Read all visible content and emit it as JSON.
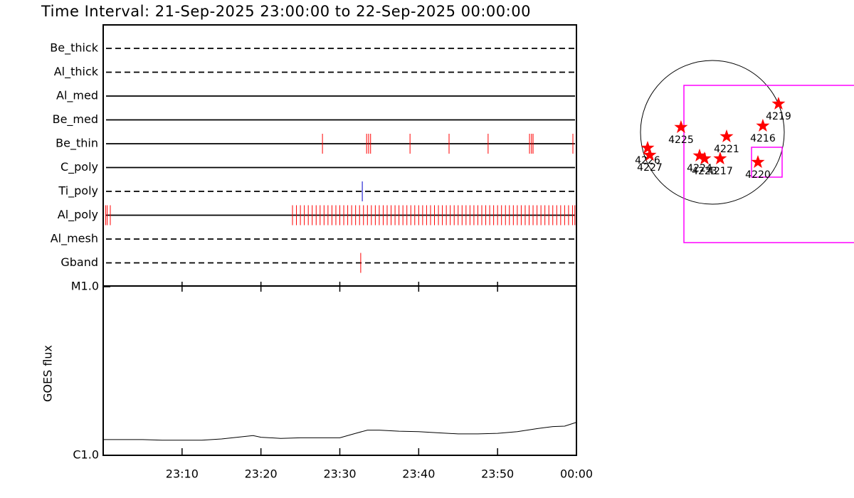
{
  "title": "Time Interval: 21-Sep-2025 23:00:00 to 22-Sep-2025 00:00:00",
  "chart_data": [
    {
      "type": "timeline",
      "xlim": [
        0,
        60
      ],
      "series": [
        {
          "name": "Be_thick",
          "dashed": true,
          "color": "#ff0000",
          "values": []
        },
        {
          "name": "Al_thick",
          "dashed": true,
          "color": "#ff0000",
          "values": []
        },
        {
          "name": "Al_med",
          "dashed": false,
          "color": "#ff0000",
          "values": []
        },
        {
          "name": "Be_med",
          "dashed": false,
          "color": "#ff0000",
          "values": []
        },
        {
          "name": "Be_thin",
          "dashed": false,
          "color": "#ff0000",
          "values": [
            27.8,
            33.4,
            33.65,
            33.9,
            38.9,
            43.85,
            48.8,
            54.05,
            54.3,
            54.5,
            59.55
          ]
        },
        {
          "name": "C_poly",
          "dashed": false,
          "color": "#ff0000",
          "values": []
        },
        {
          "name": "Ti_poly",
          "dashed": true,
          "color": "#0000cc",
          "values": [
            32.85
          ]
        },
        {
          "name": "Al_poly",
          "dashed": false,
          "color": "#ff0000",
          "values": [
            0.3,
            0.5,
            0.9,
            24,
            24.5,
            25,
            25.5,
            26,
            26.5,
            27,
            27.5,
            28,
            28.5,
            29,
            29.5,
            30,
            30.5,
            31,
            31.5,
            32,
            32.5,
            33,
            33.5,
            34,
            34.5,
            35,
            35.5,
            36,
            36.5,
            37,
            37.5,
            38,
            38.5,
            39,
            39.5,
            40,
            40.5,
            41,
            41.5,
            42,
            42.5,
            43,
            43.5,
            44,
            44.5,
            45,
            45.5,
            46,
            46.5,
            47,
            47.5,
            48,
            48.5,
            49,
            49.5,
            50,
            50.5,
            51,
            51.5,
            52,
            52.5,
            53,
            53.5,
            54,
            54.5,
            55,
            55.5,
            56,
            56.5,
            57,
            57.5,
            58,
            58.5,
            59,
            59.5,
            59.8
          ]
        },
        {
          "name": "Al_mesh",
          "dashed": true,
          "color": "#ff0000",
          "values": []
        },
        {
          "name": "Gband",
          "dashed": true,
          "color": "#ff0000",
          "values": [
            32.65
          ]
        }
      ]
    },
    {
      "type": "line",
      "ylabel": "GOES flux",
      "log_y": true,
      "color": "#000000",
      "xlim": [
        0,
        60
      ],
      "xticks": [
        {
          "value": 10,
          "label": "23:10"
        },
        {
          "value": 20,
          "label": "23:20"
        },
        {
          "value": 30,
          "label": "23:30"
        },
        {
          "value": 40,
          "label": "23:40"
        },
        {
          "value": 50,
          "label": "23:50"
        },
        {
          "value": 60,
          "label": "00:00"
        }
      ],
      "ylim": [
        1e-06,
        1e-05
      ],
      "yticks": [
        {
          "value": 1e-06,
          "label": "C1.0"
        },
        {
          "value": 1e-05,
          "label": "M1.0"
        }
      ],
      "x": [
        0,
        2.5,
        5,
        7.5,
        10,
        12.5,
        15,
        17,
        19,
        20,
        22.5,
        25,
        27.5,
        30,
        32,
        33.5,
        35,
        37.5,
        40,
        42.5,
        45,
        47.5,
        50,
        52.5,
        55,
        57,
        58.5,
        60
      ],
      "values": [
        1.24e-06,
        1.24e-06,
        1.24e-06,
        1.23e-06,
        1.23e-06,
        1.23e-06,
        1.25e-06,
        1.28e-06,
        1.31e-06,
        1.28e-06,
        1.26e-06,
        1.27e-06,
        1.27e-06,
        1.27e-06,
        1.35e-06,
        1.41e-06,
        1.41e-06,
        1.39e-06,
        1.38e-06,
        1.36e-06,
        1.34e-06,
        1.34e-06,
        1.35e-06,
        1.38e-06,
        1.44e-06,
        1.48e-06,
        1.49e-06,
        1.57e-06
      ]
    },
    {
      "type": "scatter",
      "color": "#ff0000",
      "xlim": [
        -1137,
        1871
      ],
      "ylim": [
        -1260,
        1560
      ],
      "labels": [
        "4219",
        "4216",
        "4225",
        "4221",
        "4226",
        "4227",
        "4224",
        "4223",
        "4217",
        "4220"
      ],
      "x": [
        874,
        667,
        -414,
        188,
        -855,
        -827,
        -169,
        -103,
        103,
        602
      ],
      "y": [
        376,
        85,
        66,
        -56,
        -207,
        -301,
        -310,
        -348,
        -348,
        -395
      ]
    }
  ]
}
